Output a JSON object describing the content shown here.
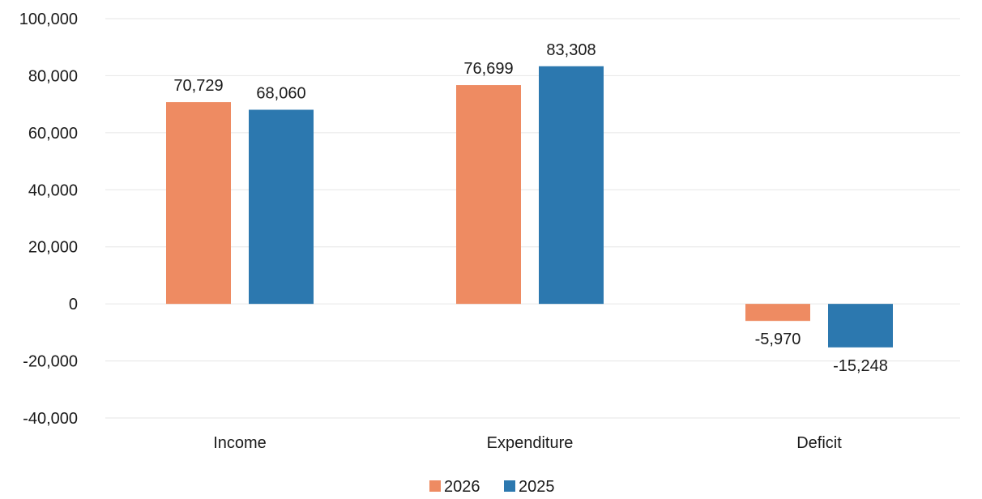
{
  "chart_data": {
    "type": "bar",
    "title": "",
    "xlabel": "",
    "ylabel": "",
    "categories": [
      "Income",
      "Expenditure",
      "Deficit"
    ],
    "series": [
      {
        "name": "2026",
        "color": "#EE8B62",
        "values": [
          70729,
          76699,
          -5970
        ],
        "labels": [
          "70,729",
          "76,699",
          "-5,970"
        ]
      },
      {
        "name": "2025",
        "color": "#2C78AF",
        "values": [
          68060,
          83308,
          -15248
        ],
        "labels": [
          "68,060",
          "83,308",
          "-15,248"
        ]
      }
    ],
    "ylim": [
      -40000,
      100000
    ],
    "yticks": [
      100000,
      80000,
      60000,
      40000,
      20000,
      0,
      -20000,
      -40000
    ],
    "ytick_labels": [
      "100,000",
      "80,000",
      "60,000",
      "40,000",
      "20,000",
      "0",
      "-20,000",
      "-40,000"
    ],
    "grid": true,
    "legend_position": "bottom"
  }
}
